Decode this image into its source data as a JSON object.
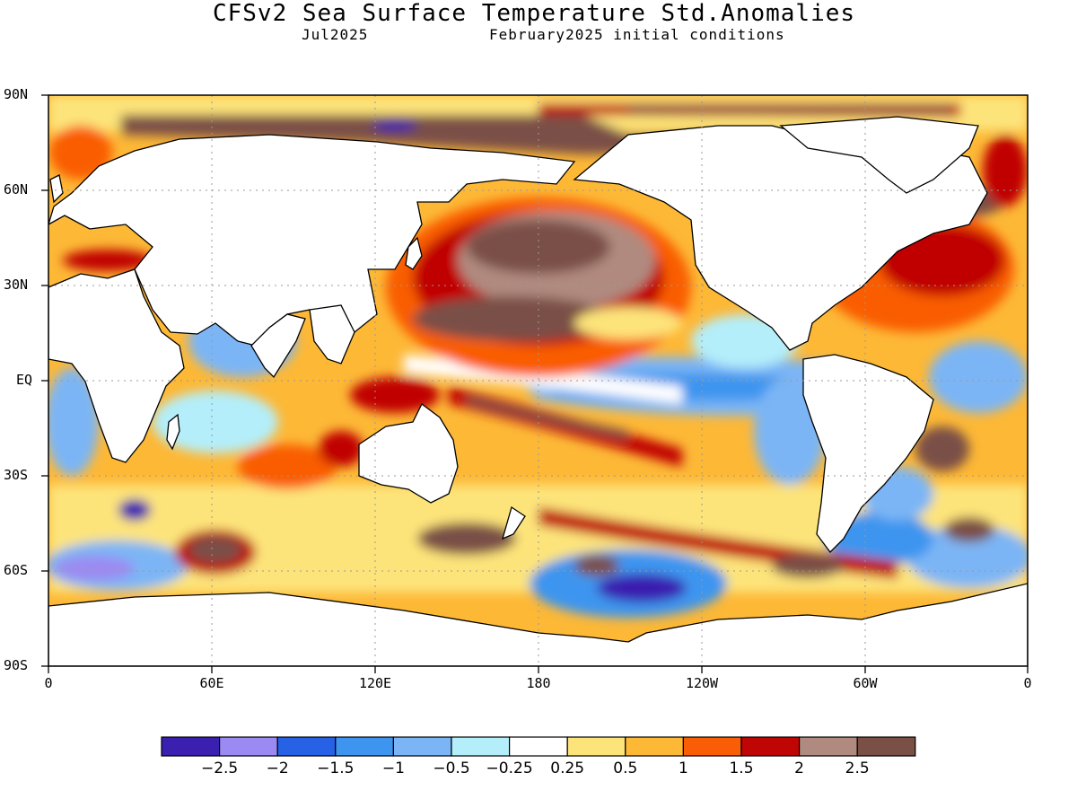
{
  "header": {
    "title": "CFSv2 Sea Surface Temperature Std.Anomalies",
    "month": "Jul2025",
    "init": "February2025 initial conditions"
  },
  "axes": {
    "lat_labels": [
      "90N",
      "60N",
      "30N",
      "EQ",
      "30S",
      "60S",
      "90S"
    ],
    "lon_labels": [
      "0",
      "60E",
      "120E",
      "180",
      "120W",
      "60W",
      "0"
    ]
  },
  "legend": {
    "colors": [
      "#3a1fb0",
      "#9b8af2",
      "#2762e6",
      "#3e95ef",
      "#7bb5f5",
      "#b4eefa",
      "#ffffff",
      "#fde47a",
      "#fdb836",
      "#f95d06",
      "#c00505",
      "#b08a7f",
      "#7a5046"
    ],
    "labels": [
      "-2.5",
      "-2",
      "-1.5",
      "-1",
      "-0.5",
      "-0.25",
      "0.25",
      "0.5",
      "1",
      "1.5",
      "2",
      "2.5"
    ]
  },
  "map_regions": {
    "continents": [
      "North America",
      "South America",
      "Europe",
      "Africa",
      "Asia",
      "Australia",
      "Antarctica",
      "Greenland"
    ],
    "warm_anomaly_areas": [
      "North Pacific",
      "North Atlantic",
      "Arctic Ocean",
      "Southern Ocean band",
      "Maritime Continent"
    ],
    "cool_anomaly_areas": [
      "Equatorial Pacific",
      "Indian Ocean",
      "South Pacific near Antarctica"
    ]
  }
}
